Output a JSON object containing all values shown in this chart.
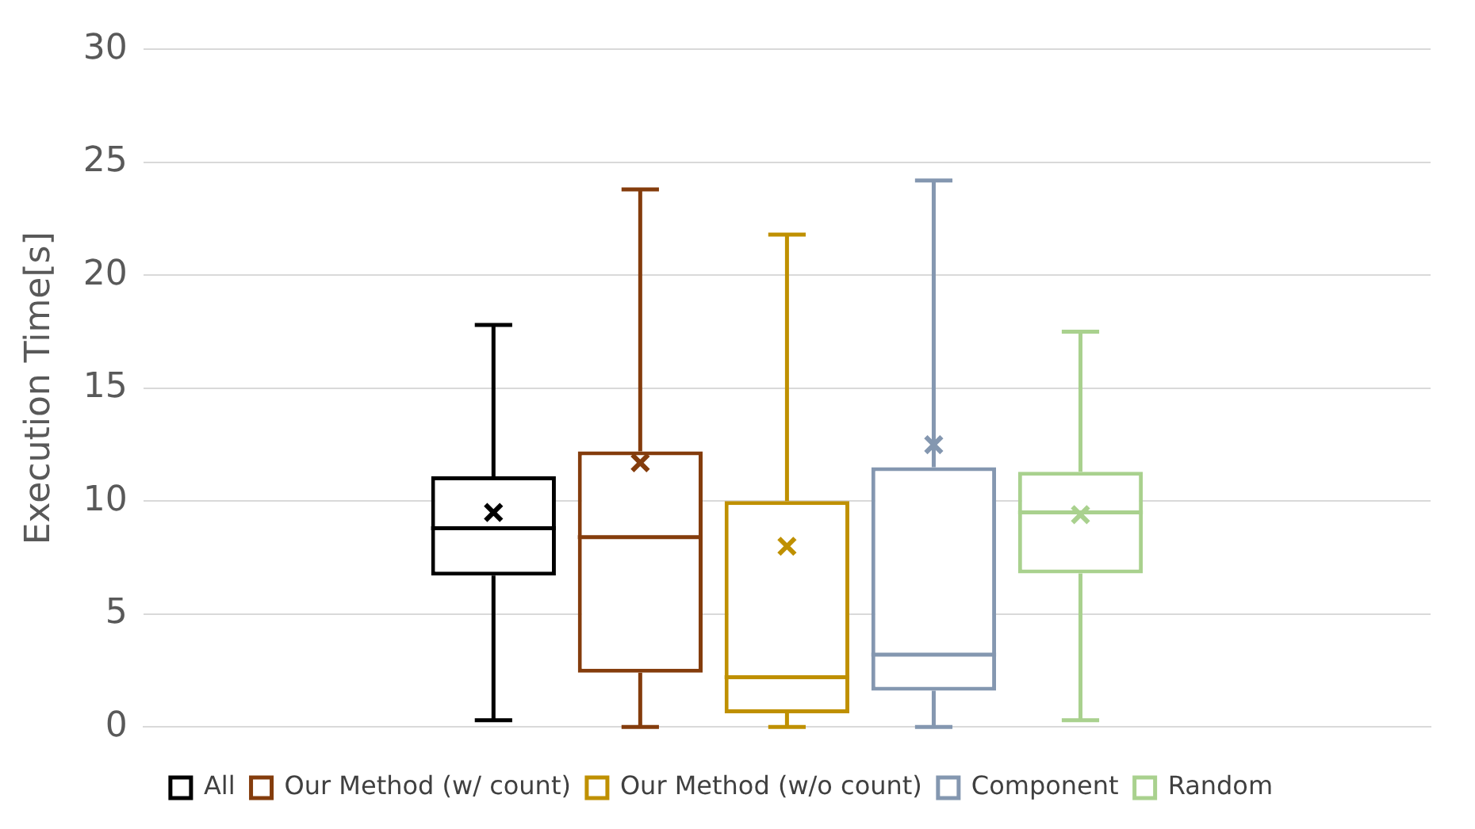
{
  "chart_data": {
    "type": "box",
    "ylabel": "Execution Time[s]",
    "categories": [
      null
    ],
    "ylim": [
      0,
      30
    ],
    "yticks": [
      0,
      5,
      10,
      15,
      20,
      25,
      30
    ],
    "grid": "y",
    "legend": "bottom",
    "marker": "cross",
    "series": [
      {
        "name": "All",
        "color": "#000000",
        "boxes": [
          {
            "low": 0.3,
            "q1": 6.7,
            "median": 8.8,
            "q3": 11.1,
            "high": 17.8,
            "mean": 9.5
          }
        ]
      },
      {
        "name": "Our Method (w/ count)",
        "color": "#843c0c",
        "boxes": [
          {
            "low": 0,
            "q1": 2.4,
            "median": 8.4,
            "q3": 12.2,
            "high": 23.8,
            "mean": 11.7
          }
        ]
      },
      {
        "name": "Our Method (w/o count)",
        "color": "#bf9000",
        "boxes": [
          {
            "low": 0,
            "q1": 0.6,
            "median": 2.2,
            "q3": 10,
            "high": 21.8,
            "mean": 8
          }
        ]
      },
      {
        "name": "Component",
        "color": "#8497b0",
        "boxes": [
          {
            "low": 0,
            "q1": 1.6,
            "median": 3.2,
            "q3": 11.5,
            "high": 24.2,
            "mean": 12.5
          }
        ]
      },
      {
        "name": "Random",
        "color": "#a9d18e",
        "boxes": [
          {
            "low": 0.3,
            "q1": 6.8,
            "median": 9.5,
            "q3": 11.3,
            "high": 17.5,
            "mean": 9.4
          }
        ]
      }
    ]
  }
}
